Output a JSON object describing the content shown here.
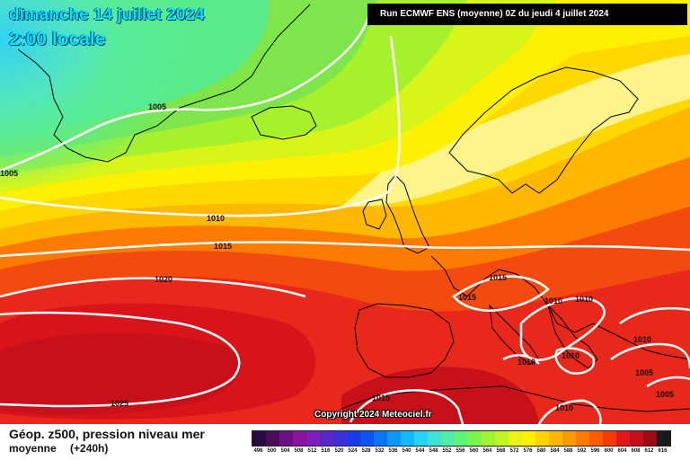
{
  "header": {
    "date": "dimanche 14 juillet 2024",
    "local_time": "2:00 locale",
    "run_info": "Run ECMWF ENS (moyenne) 0Z du jeudi 4 juillet 2024"
  },
  "footer": {
    "product": "Géop. z500, pression niveau mer",
    "mean": "moyenne",
    "lead": "(+240h)",
    "copyright": "Copyright 2024 Meteociel.fr"
  },
  "legend": {
    "labels": [
      "496",
      "500",
      "504",
      "508",
      "512",
      "516",
      "520",
      "524",
      "528",
      "532",
      "536",
      "540",
      "544",
      "548",
      "552",
      "556",
      "560",
      "564",
      "568",
      "572",
      "576",
      "580",
      "584",
      "588",
      "592",
      "596",
      "600",
      "604",
      "608",
      "612",
      "616"
    ],
    "colors": [
      "#2a0a3d",
      "#4b0d5e",
      "#6a1080",
      "#8c13a0",
      "#7a1fb8",
      "#5a26c8",
      "#3a2fd8",
      "#1a3ae8",
      "#0b55f0",
      "#0a76f5",
      "#0b98f8",
      "#10b9fb",
      "#27d3f7",
      "#3fe3d5",
      "#4ff0a6",
      "#5ef574",
      "#7cf54a",
      "#9ef530",
      "#c3f51f",
      "#e6f516",
      "#fff200",
      "#ffd600",
      "#ffb800",
      "#ff9a00",
      "#ff7a00",
      "#ff5a00",
      "#f43a0a",
      "#e01818",
      "#c30f1a",
      "#9c0a14",
      "#1a1a1a"
    ]
  },
  "isobars": {
    "labels": [
      "1005",
      "1005",
      "1010",
      "1015",
      "1020",
      "1025",
      "1015",
      "1015",
      "1010",
      "1010",
      "1010",
      "1010",
      "1005",
      "1005",
      "1015",
      "1010"
    ]
  },
  "colors": {
    "ocean_cold": "#3bd6f0",
    "geo_green": "#7ee64a",
    "geo_yellow": "#fff000",
    "geo_orange": "#ff9a00",
    "geo_red": "#e61a12",
    "isobar": "#ffffff",
    "coast": "#000000"
  }
}
